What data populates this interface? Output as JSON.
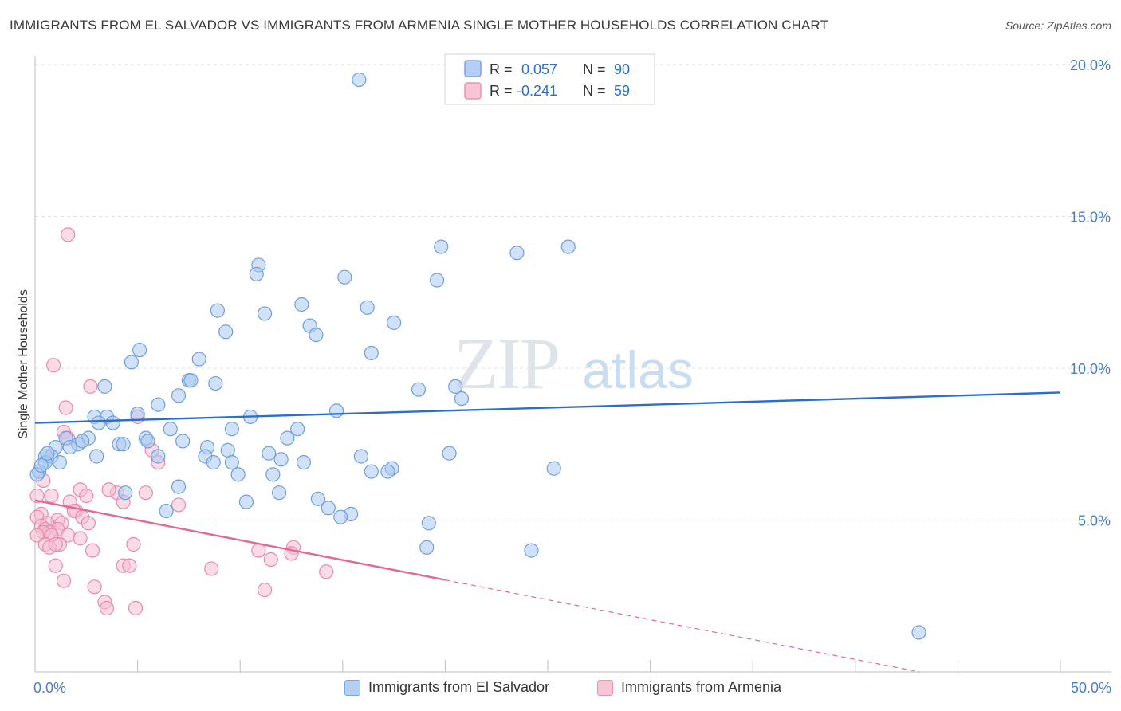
{
  "header": {
    "title": "IMMIGRANTS FROM EL SALVADOR VS IMMIGRANTS FROM ARMENIA SINGLE MOTHER HOUSEHOLDS CORRELATION CHART",
    "source": "Source: ZipAtlas.com"
  },
  "watermark": {
    "zip": "ZIP",
    "atlas": "atlas"
  },
  "legend_top": {
    "rows": [
      {
        "r_label": "R =",
        "r_value": "0.057",
        "n_label": "N =",
        "n_value": "90",
        "color": "#9bbdf0"
      },
      {
        "r_label": "R =",
        "r_value": "-0.241",
        "n_label": "N =",
        "n_value": "59",
        "color": "#f2a9c0"
      }
    ]
  },
  "legend_bottom": {
    "items": [
      {
        "label": "Immigrants from El Salvador",
        "color": "#9bbdf0"
      },
      {
        "label": "Immigrants from Armenia",
        "color": "#f2a9c0"
      }
    ]
  },
  "colors": {
    "blue_fill": "#a9c8f2",
    "blue_stroke": "#6f9fdc",
    "blue_line": "#2a6fcf",
    "pink_fill": "#f6c0d1",
    "pink_stroke": "#e98aab",
    "pink_line": "#e36892",
    "tick_label": "#4a7cc9"
  },
  "chart_data": {
    "type": "scatter",
    "title": "IMMIGRANTS FROM EL SALVADOR VS IMMIGRANTS FROM ARMENIA SINGLE MOTHER HOUSEHOLDS CORRELATION CHART",
    "xlabel": "",
    "ylabel": "Single Mother Households",
    "xlim": [
      0,
      50
    ],
    "ylim": [
      0,
      20
    ],
    "x_tick_labels": [
      {
        "value": 0,
        "label": "0.0%"
      },
      {
        "value": 50,
        "label": "50.0%"
      }
    ],
    "y_tick_labels": [
      {
        "value": 5,
        "label": "5.0%"
      },
      {
        "value": 10,
        "label": "10.0%"
      },
      {
        "value": 15,
        "label": "15.0%"
      },
      {
        "value": 20,
        "label": "20.0%"
      }
    ],
    "grid": true,
    "legend_position": "top-center",
    "series": [
      {
        "name": "Immigrants from El Salvador",
        "r": 0.057,
        "n": 90,
        "trend": {
          "x": [
            0,
            50
          ],
          "y": [
            8.2,
            9.2
          ],
          "dashed_after": null
        },
        "points": [
          [
            15.8,
            19.5
          ],
          [
            19.8,
            14.0
          ],
          [
            23.5,
            13.8
          ],
          [
            26.0,
            14.0
          ],
          [
            10.9,
            13.4
          ],
          [
            10.8,
            13.1
          ],
          [
            15.1,
            13.0
          ],
          [
            19.6,
            12.9
          ],
          [
            13.0,
            12.1
          ],
          [
            8.9,
            11.9
          ],
          [
            11.2,
            11.8
          ],
          [
            16.2,
            12.0
          ],
          [
            17.5,
            11.5
          ],
          [
            13.4,
            11.4
          ],
          [
            9.3,
            11.2
          ],
          [
            13.7,
            11.1
          ],
          [
            5.1,
            10.6
          ],
          [
            16.4,
            10.5
          ],
          [
            4.7,
            10.2
          ],
          [
            8.0,
            10.3
          ],
          [
            7.5,
            9.6
          ],
          [
            7.6,
            9.6
          ],
          [
            8.8,
            9.5
          ],
          [
            3.4,
            9.4
          ],
          [
            20.5,
            9.4
          ],
          [
            18.7,
            9.3
          ],
          [
            7.0,
            9.1
          ],
          [
            20.8,
            9.0
          ],
          [
            6.0,
            8.8
          ],
          [
            14.7,
            8.6
          ],
          [
            2.9,
            8.4
          ],
          [
            5.0,
            8.5
          ],
          [
            3.5,
            8.4
          ],
          [
            10.5,
            8.4
          ],
          [
            3.1,
            8.2
          ],
          [
            3.8,
            8.2
          ],
          [
            6.6,
            8.0
          ],
          [
            9.6,
            8.0
          ],
          [
            12.8,
            8.0
          ],
          [
            12.3,
            7.7
          ],
          [
            1.5,
            7.7
          ],
          [
            2.6,
            7.7
          ],
          [
            5.4,
            7.7
          ],
          [
            5.5,
            7.6
          ],
          [
            4.1,
            7.5
          ],
          [
            7.2,
            7.6
          ],
          [
            2.1,
            7.5
          ],
          [
            4.3,
            7.5
          ],
          [
            1.0,
            7.4
          ],
          [
            8.4,
            7.4
          ],
          [
            1.7,
            7.4
          ],
          [
            9.4,
            7.3
          ],
          [
            20.2,
            7.2
          ],
          [
            11.4,
            7.2
          ],
          [
            0.5,
            7.1
          ],
          [
            0.8,
            7.1
          ],
          [
            3.0,
            7.1
          ],
          [
            6.0,
            7.1
          ],
          [
            8.3,
            7.1
          ],
          [
            15.9,
            7.1
          ],
          [
            12.0,
            7.0
          ],
          [
            13.1,
            6.9
          ],
          [
            0.5,
            6.9
          ],
          [
            1.2,
            6.9
          ],
          [
            9.6,
            6.9
          ],
          [
            8.7,
            6.9
          ],
          [
            17.4,
            6.7
          ],
          [
            25.3,
            6.7
          ],
          [
            17.2,
            6.6
          ],
          [
            16.4,
            6.6
          ],
          [
            0.2,
            6.6
          ],
          [
            9.9,
            6.5
          ],
          [
            11.6,
            6.5
          ],
          [
            0.1,
            6.5
          ],
          [
            7.0,
            6.1
          ],
          [
            4.4,
            5.9
          ],
          [
            11.9,
            5.9
          ],
          [
            13.8,
            5.7
          ],
          [
            10.3,
            5.6
          ],
          [
            14.3,
            5.4
          ],
          [
            6.4,
            5.3
          ],
          [
            15.4,
            5.2
          ],
          [
            14.9,
            5.1
          ],
          [
            19.2,
            4.9
          ],
          [
            19.1,
            4.1
          ],
          [
            24.2,
            4.0
          ],
          [
            43.1,
            1.3
          ],
          [
            0.3,
            6.8
          ],
          [
            2.3,
            7.6
          ],
          [
            0.6,
            7.2
          ]
        ]
      },
      {
        "name": "Immigrants from Armenia",
        "r": -0.241,
        "n": 59,
        "trend": {
          "x": [
            0,
            50
          ],
          "y": [
            5.65,
            -0.9
          ],
          "dashed_after": 20
        },
        "points": [
          [
            1.6,
            14.4
          ],
          [
            0.9,
            10.1
          ],
          [
            2.7,
            9.4
          ],
          [
            1.5,
            8.7
          ],
          [
            5.0,
            8.4
          ],
          [
            1.4,
            7.9
          ],
          [
            1.6,
            7.7
          ],
          [
            5.7,
            7.3
          ],
          [
            6.0,
            6.9
          ],
          [
            0.4,
            6.3
          ],
          [
            2.2,
            6.0
          ],
          [
            4.0,
            5.9
          ],
          [
            5.4,
            5.9
          ],
          [
            3.6,
            6.0
          ],
          [
            2.5,
            5.8
          ],
          [
            0.1,
            5.8
          ],
          [
            0.8,
            5.8
          ],
          [
            1.7,
            5.6
          ],
          [
            4.3,
            5.6
          ],
          [
            7.0,
            5.5
          ],
          [
            2.0,
            5.3
          ],
          [
            1.9,
            5.3
          ],
          [
            2.3,
            5.1
          ],
          [
            0.3,
            5.2
          ],
          [
            0.1,
            5.1
          ],
          [
            1.1,
            5.0
          ],
          [
            0.6,
            4.9
          ],
          [
            1.3,
            4.9
          ],
          [
            2.6,
            4.9
          ],
          [
            0.3,
            4.8
          ],
          [
            1.1,
            4.7
          ],
          [
            0.5,
            4.7
          ],
          [
            0.7,
            4.6
          ],
          [
            0.4,
            4.6
          ],
          [
            0.8,
            4.5
          ],
          [
            1.6,
            4.5
          ],
          [
            0.1,
            4.5
          ],
          [
            1.2,
            4.2
          ],
          [
            2.2,
            4.4
          ],
          [
            4.8,
            4.2
          ],
          [
            0.5,
            4.2
          ],
          [
            0.7,
            4.1
          ],
          [
            1.0,
            4.2
          ],
          [
            12.6,
            4.1
          ],
          [
            10.9,
            4.0
          ],
          [
            12.5,
            3.9
          ],
          [
            11.5,
            3.7
          ],
          [
            2.8,
            4.0
          ],
          [
            1.0,
            3.5
          ],
          [
            4.3,
            3.5
          ],
          [
            4.6,
            3.5
          ],
          [
            8.6,
            3.4
          ],
          [
            14.2,
            3.3
          ],
          [
            1.4,
            3.0
          ],
          [
            2.9,
            2.8
          ],
          [
            11.2,
            2.7
          ],
          [
            3.4,
            2.3
          ],
          [
            4.9,
            2.1
          ],
          [
            3.5,
            2.1
          ]
        ]
      }
    ]
  }
}
